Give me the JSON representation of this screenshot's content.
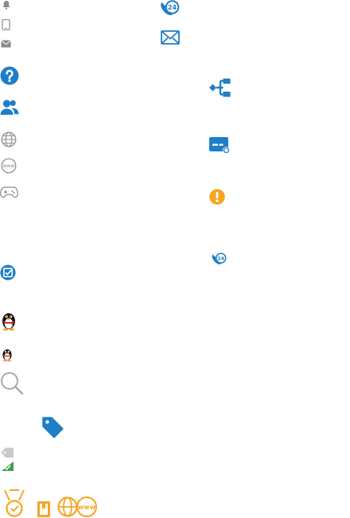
{
  "icons": [
    {
      "name": "bell-icon",
      "color": "#8a8a8a"
    },
    {
      "name": "mobile-phone-icon",
      "color": "#8a8a8a"
    },
    {
      "name": "envelope-icon",
      "color": "#8a8a8a"
    },
    {
      "name": "question-circle-icon",
      "color": "#1e7ec8"
    },
    {
      "name": "users-icon",
      "color": "#1e7ec8"
    },
    {
      "name": "globe-icon",
      "color": "#8a8a8a"
    },
    {
      "name": "www-circle-icon",
      "color": "#8a8a8a"
    },
    {
      "name": "gamepad-icon",
      "color": "#8a8a8a"
    },
    {
      "name": "checkbox-circle-icon",
      "color": "#1e7ec8"
    },
    {
      "name": "qq-penguin-icon",
      "color": "#000000"
    },
    {
      "name": "qq-penguin-small-icon",
      "color": "#000000"
    },
    {
      "name": "search-icon",
      "color": "#a8a8a8"
    },
    {
      "name": "price-tag-icon",
      "color": "#1e7ec8"
    },
    {
      "name": "tag-check-icon",
      "color": "#3aa24a"
    },
    {
      "name": "medal-icon",
      "color": "#f5a623"
    },
    {
      "name": "bookmark-book-icon",
      "color": "#f5a623"
    },
    {
      "name": "globe-www-icon",
      "color": "#f5a623"
    },
    {
      "name": "phone-24h-icon",
      "color": "#1e7ec8"
    },
    {
      "name": "mail-outline-icon",
      "color": "#1e7ec8"
    },
    {
      "name": "org-tree-icon",
      "color": "#1e7ec8"
    },
    {
      "name": "payment-card-icon",
      "color": "#1e7ec8"
    },
    {
      "name": "warning-circle-icon",
      "color": "#f5a623"
    },
    {
      "name": "phone-24h-small-icon",
      "color": "#1e7ec8"
    }
  ],
  "phone_24h_label": "24",
  "phone_24h_small_label": "24",
  "www_label": "www",
  "globe_www_label": "www"
}
